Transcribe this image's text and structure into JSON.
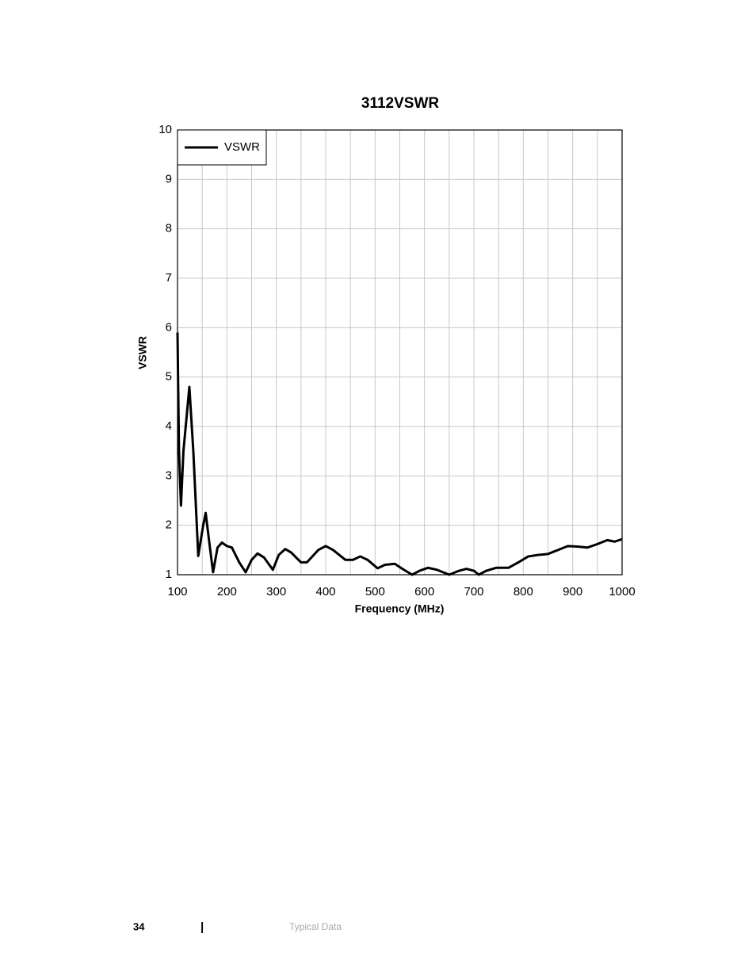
{
  "chart_data": {
    "type": "line",
    "title": "3112VSWR",
    "x_label": "Frequency (MHz)",
    "y_label": "VSWR",
    "x": [
      100,
      103,
      107,
      112,
      124,
      132,
      142,
      152,
      157,
      165,
      172,
      181,
      190,
      200,
      210,
      225,
      238,
      250,
      262,
      275,
      293,
      305,
      318,
      330,
      350,
      362,
      385,
      400,
      415,
      440,
      455,
      470,
      485,
      505,
      520,
      540,
      555,
      575,
      590,
      607,
      625,
      650,
      670,
      685,
      700,
      710,
      725,
      745,
      770,
      790,
      810,
      830,
      850,
      870,
      890,
      910,
      930,
      950,
      970,
      985,
      1000
    ],
    "series": [
      {
        "name": "VSWR",
        "color": "#000000",
        "values": [
          5.9,
          3.5,
          2.4,
          3.5,
          4.8,
          3.5,
          1.38,
          2.0,
          2.25,
          1.6,
          1.05,
          1.55,
          1.65,
          1.58,
          1.55,
          1.25,
          1.05,
          1.3,
          1.43,
          1.35,
          1.1,
          1.4,
          1.52,
          1.45,
          1.25,
          1.25,
          1.5,
          1.58,
          1.5,
          1.3,
          1.3,
          1.37,
          1.3,
          1.13,
          1.2,
          1.22,
          1.12,
          1.0,
          1.08,
          1.14,
          1.1,
          1.0,
          1.08,
          1.12,
          1.08,
          1.0,
          1.08,
          1.14,
          1.14,
          1.25,
          1.37,
          1.4,
          1.42,
          1.5,
          1.58,
          1.57,
          1.55,
          1.62,
          1.7,
          1.67,
          1.72
        ]
      }
    ],
    "xlim": [
      100,
      1000
    ],
    "xticks": [
      100,
      200,
      300,
      400,
      500,
      600,
      700,
      800,
      900,
      1000
    ],
    "ylim": [
      1,
      10
    ],
    "yticks": [
      1,
      2,
      3,
      4,
      5,
      6,
      7,
      8,
      9,
      10
    ],
    "grid": true,
    "xgrid_per_tick": 2,
    "legend": "top-left"
  },
  "footer": {
    "page": "34",
    "separator": "|",
    "section": "Typical Data"
  }
}
